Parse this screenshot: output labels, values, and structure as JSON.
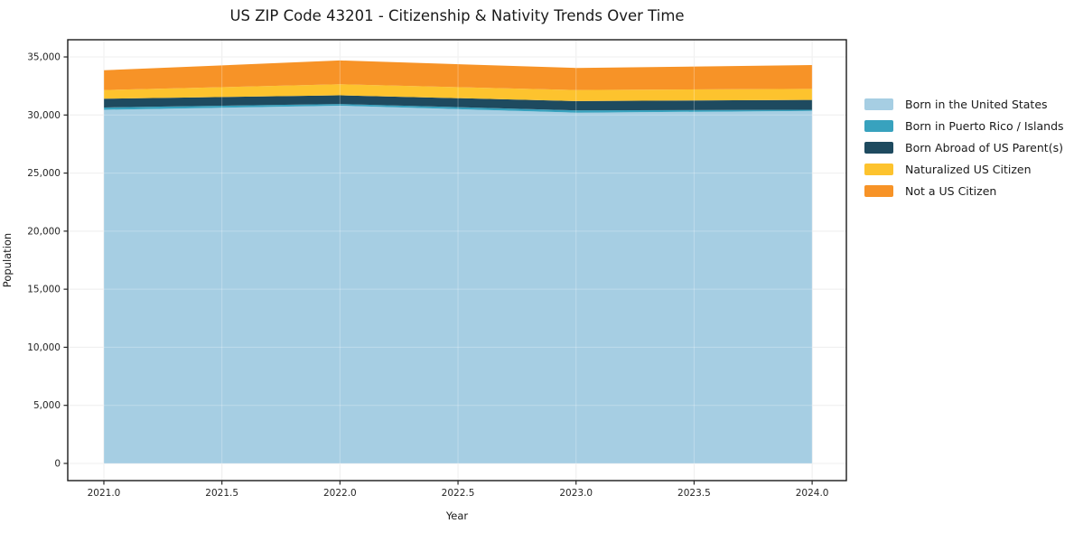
{
  "chart_data": {
    "type": "area",
    "stacked": true,
    "title": "US ZIP Code 43201 - Citizenship & Nativity Trends Over Time",
    "xlabel": "Year",
    "ylabel": "Population",
    "x": [
      2021,
      2022,
      2023,
      2024
    ],
    "series": [
      {
        "name": "Born in the United States",
        "color": "#A6CEE3",
        "values": [
          30450,
          30800,
          30200,
          30350
        ]
      },
      {
        "name": "Born in Puerto Rico / Islands",
        "color": "#38A2BE",
        "values": [
          200,
          150,
          200,
          100
        ]
      },
      {
        "name": "Born Abroad of US Parent(s)",
        "color": "#1E4A5F",
        "values": [
          750,
          750,
          800,
          850
        ]
      },
      {
        "name": "Naturalized US Citizen",
        "color": "#FDC32E",
        "values": [
          750,
          950,
          950,
          950
        ]
      },
      {
        "name": "Not a US Citizen",
        "color": "#F79327",
        "values": [
          1700,
          2050,
          1900,
          2050
        ]
      }
    ],
    "stack_totals": [
      33850,
      34700,
      34050,
      34300
    ],
    "xticks": {
      "values": [
        2021.0,
        2021.5,
        2022.0,
        2022.5,
        2023.0,
        2023.5,
        2024.0
      ],
      "labels": [
        "2021.0",
        "2021.5",
        "2022.0",
        "2022.5",
        "2023.0",
        "2023.5",
        "2024.0"
      ]
    },
    "yticks": {
      "values": [
        0,
        5000,
        10000,
        15000,
        20000,
        25000,
        30000,
        35000
      ],
      "labels": [
        "0",
        "5,000",
        "10,000",
        "15,000",
        "20,000",
        "25,000",
        "30,000",
        "35,000"
      ]
    },
    "xlim": [
      2020.847,
      2024.145
    ],
    "ylim": [
      -1480,
      36480
    ],
    "grid": true,
    "legend_position": "right"
  },
  "style": {
    "background": "#ffffff",
    "grid_color": "#e9e9e9",
    "grid_overlay_color": "rgba(255,255,255,0.28)",
    "spine_color": "#1a1a1a",
    "tick_color": "#262626",
    "tick_label_color": "#262626",
    "text_color": "#1a1a1a"
  }
}
